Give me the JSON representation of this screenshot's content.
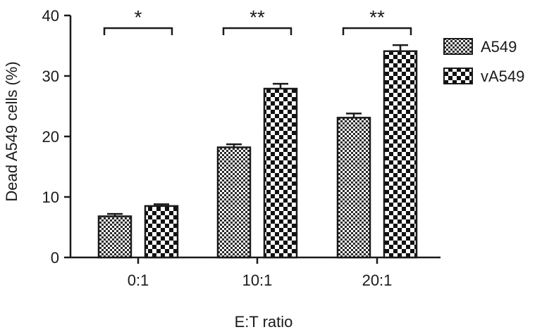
{
  "chart_data": {
    "type": "bar",
    "title": "",
    "xlabel": "E:T ratio",
    "ylabel": "Dead A549 cells (%)",
    "categories": [
      "0:1",
      "10:1",
      "20:1"
    ],
    "ylim": [
      0,
      40
    ],
    "yticks": [
      0,
      10,
      20,
      30,
      40
    ],
    "grid": false,
    "legend_position": "top-right",
    "series": [
      {
        "name": "A549",
        "values": [
          6.8,
          18.2,
          23.1
        ],
        "errors": [
          0.4,
          0.5,
          0.7
        ],
        "pattern": "fine-checker"
      },
      {
        "name": "vA549",
        "values": [
          8.5,
          27.9,
          34.1
        ],
        "errors": [
          0.3,
          0.8,
          1.0
        ],
        "pattern": "coarse-checker"
      }
    ],
    "significance": [
      {
        "category": "0:1",
        "label": "*"
      },
      {
        "category": "10:1",
        "label": "**"
      },
      {
        "category": "20:1",
        "label": "**"
      }
    ],
    "colors": {
      "ink": "#1a1a1a",
      "background": "#ffffff"
    }
  }
}
